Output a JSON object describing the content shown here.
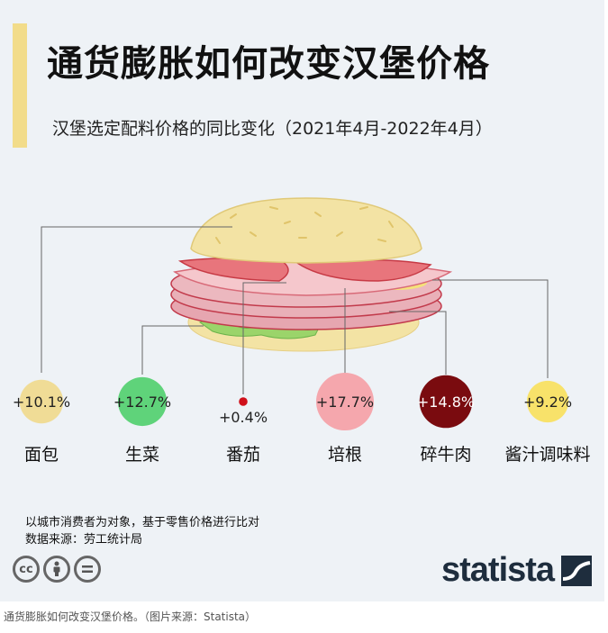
{
  "title": "通货膨胀如何改变汉堡价格",
  "subtitle": "汉堡选定配料价格的同比变化（2021年4月-2022年4月）",
  "chart_data": {
    "type": "bar",
    "categories": [
      "面包",
      "生菜",
      "番茄",
      "培根",
      "碎牛肉",
      "酱汁调味料"
    ],
    "values": [
      10.1,
      12.7,
      0.4,
      17.7,
      14.8,
      9.2
    ],
    "value_labels": [
      "+10.1%",
      "+12.7%",
      "+0.4%",
      "+17.7%",
      "+14.8%",
      "+9.2%"
    ],
    "unit": "%",
    "colors": [
      "#f0dc96",
      "#5fd37a",
      "#d0101a",
      "#f5a7ad",
      "#7a0b0f",
      "#f8e26a"
    ],
    "label_colors": [
      "#222222",
      "#222222",
      "#222222",
      "#222222",
      "#ffffff",
      "#222222"
    ],
    "encoding": "circle area"
  },
  "footnotes": {
    "note": "以城市消费者为对象，基于零售价格进行比对",
    "source": "数据来源：劳工统计局"
  },
  "license_icons": [
    "creative-commons-icon",
    "attribution-person-icon",
    "no-derivatives-icon"
  ],
  "brand": "statista",
  "caption": "通货膨胀如何改变汉堡价格。（图片来源：Statista）"
}
